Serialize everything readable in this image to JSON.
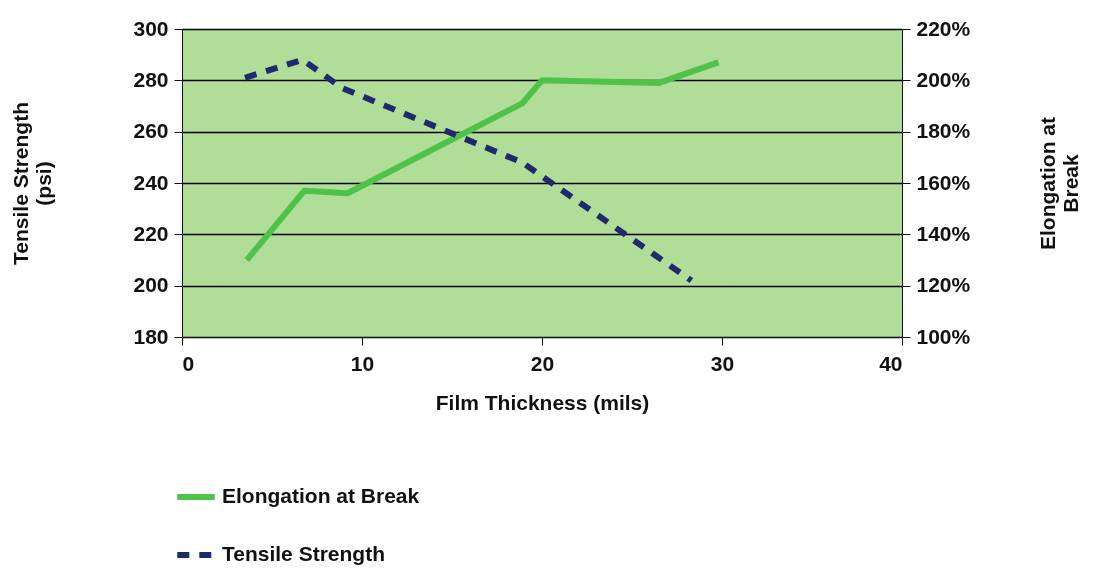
{
  "chart_data": {
    "type": "line",
    "xlabel": "Film Thickness (mils)",
    "ylabel": "Tensile Strength\n(psi)",
    "y2label": "Elongation at\nBreak",
    "xlim": [
      0,
      40
    ],
    "xticks": [
      0,
      10,
      20,
      30,
      40
    ],
    "ylim": [
      180,
      300
    ],
    "yticks": [
      180,
      200,
      220,
      240,
      260,
      280,
      300
    ],
    "y2lim": [
      100,
      220
    ],
    "y2ticks": [
      {
        "value": 100,
        "label": "100%"
      },
      {
        "value": 120,
        "label": "120%"
      },
      {
        "value": 140,
        "label": "140%"
      },
      {
        "value": 160,
        "label": "160%"
      },
      {
        "value": 180,
        "label": "180%"
      },
      {
        "value": 200,
        "label": "200%"
      },
      {
        "value": 220,
        "label": "220%"
      }
    ],
    "grid": "y",
    "legend": "bottom",
    "marker": "none",
    "series": [
      {
        "name": "Elongation at Break",
        "color": "#4fc24a",
        "axis": "y2",
        "line_style": "solid",
        "x": [
          3.6,
          6.8,
          9.2,
          18.9,
          20,
          26.5,
          29.8
        ],
        "values": [
          130,
          157,
          156,
          191,
          200,
          199,
          207
        ]
      },
      {
        "name": "Tensile Strength",
        "color": "#1f2a6e",
        "axis": "y",
        "line_style": "dashed",
        "x": [
          3.5,
          6.7,
          8.9,
          18.9,
          28.3
        ],
        "values": [
          281,
          288,
          277,
          248,
          202
        ]
      }
    ]
  }
}
